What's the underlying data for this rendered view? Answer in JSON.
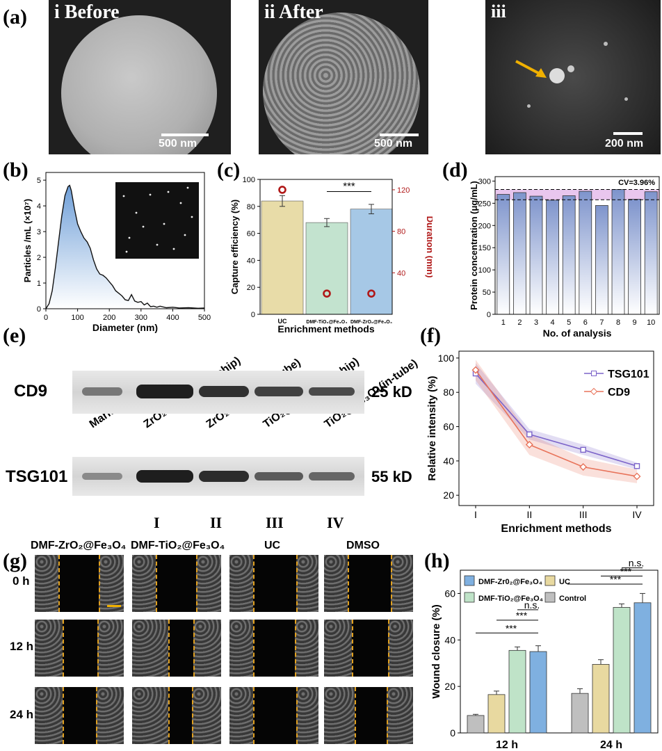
{
  "panels": {
    "a": {
      "label": "(a)",
      "img_i": "i Before",
      "img_ii": "ii After",
      "img_iii": "iii",
      "scale_i": "500 nm",
      "scale_ii": "500 nm",
      "scale_iii": "200 nm"
    },
    "b": {
      "label": "(b)"
    },
    "c": {
      "label": "(c)"
    },
    "d": {
      "label": "(d)"
    },
    "e": {
      "label": "(e)",
      "lanes": [
        "Marker",
        "ZrO₂@Fe₃O₄(on-chip)",
        "ZrO₂@Fe₃O₄(in-tube)",
        "TiO₂@Fe₃O₄(on-chip)",
        "TiO₂@Fe₃O₄(in-tube)"
      ],
      "row1": "CD9",
      "row2": "TSG101",
      "kd1": "25 kD",
      "kd2": "55 kD",
      "roman": [
        "I",
        "II",
        "III",
        "IV"
      ]
    },
    "f": {
      "label": "(f)"
    },
    "g": {
      "label": "(g)",
      "cols": [
        "DMF-ZrO₂@Fe₃O₄",
        "DMF-TiO₂@Fe₃O₄",
        "UC",
        "DMSO"
      ],
      "rows": [
        "0 h",
        "12 h",
        "24 h"
      ]
    },
    "h": {
      "label": "(h)"
    }
  },
  "chart_data": [
    {
      "id": "b",
      "type": "area",
      "xlabel": "Diameter (nm)",
      "ylabel": "Particles /mL (×10⁷)",
      "xlim": [
        0,
        500
      ],
      "ylim": [
        0,
        5.3
      ],
      "xticks": [
        0,
        100,
        200,
        300,
        400,
        500
      ],
      "yticks": [
        0,
        1,
        2,
        3,
        4,
        5
      ],
      "x": [
        0,
        10,
        20,
        30,
        40,
        50,
        60,
        70,
        75,
        80,
        90,
        100,
        110,
        120,
        130,
        140,
        150,
        160,
        170,
        180,
        190,
        200,
        210,
        220,
        230,
        240,
        250,
        260,
        270,
        280,
        290,
        300,
        310,
        320,
        330,
        340,
        350,
        360,
        380,
        400,
        420,
        450,
        480,
        500
      ],
      "y": [
        0,
        0.2,
        0.7,
        1.6,
        2.6,
        3.6,
        4.4,
        4.75,
        4.8,
        4.6,
        3.9,
        3.3,
        3.0,
        2.75,
        2.6,
        2.35,
        1.9,
        1.55,
        1.35,
        1.3,
        1.2,
        1.05,
        0.9,
        0.7,
        0.6,
        0.5,
        0.35,
        0.32,
        0.55,
        0.3,
        0.25,
        0.28,
        0.15,
        0.22,
        0.08,
        0.1,
        0.06,
        0.1,
        0.04,
        0.06,
        0.03,
        0.04,
        0.02,
        0.03
      ]
    },
    {
      "id": "c",
      "type": "bar",
      "xlabel": "Enrichment methods",
      "ylabel": "Capture efficiency (%)",
      "ylabel_right": "Duration (min)",
      "categories": [
        "UC",
        "DMF-TiO₂@Fe₃O₄",
        "DMF-ZrO₂@Fe₃O₄"
      ],
      "values": [
        84,
        68,
        78
      ],
      "errors": [
        4,
        3,
        3.5
      ],
      "duration": [
        120,
        20,
        20
      ],
      "ylim": [
        0,
        100
      ],
      "yticks": [
        0,
        20,
        40,
        60,
        80,
        100
      ],
      "ylim_right": [
        0,
        130
      ],
      "yticks_right": [
        40,
        80,
        120
      ],
      "significance": "***",
      "colors": [
        "#e8dca8",
        "#c3e3cf",
        "#a6c8e6"
      ]
    },
    {
      "id": "d",
      "type": "bar",
      "xlabel": "No. of analysis",
      "ylabel": "Protein concentration (μg/mL)",
      "categories": [
        "1",
        "2",
        "3",
        "4",
        "5",
        "6",
        "7",
        "8",
        "9",
        "10"
      ],
      "values": [
        270,
        274,
        266,
        257,
        267,
        277,
        245,
        281,
        259,
        276
      ],
      "ylim": [
        0,
        310
      ],
      "yticks": [
        0,
        50,
        100,
        150,
        200,
        250,
        300
      ],
      "annotation": "CV=3.96%",
      "band": [
        258,
        281
      ]
    },
    {
      "id": "f",
      "type": "line",
      "xlabel": "Enrichment methods",
      "ylabel": "Relative intensity (%)",
      "categories": [
        "I",
        "II",
        "III",
        "IV"
      ],
      "ylim": [
        14,
        104
      ],
      "yticks": [
        20,
        40,
        60,
        80,
        100
      ],
      "series": [
        {
          "name": "TSG101",
          "values": [
            91,
            55.5,
            46.5,
            37
          ],
          "color": "#7b63c9"
        },
        {
          "name": "CD9",
          "values": [
            93,
            49.5,
            36.5,
            31
          ],
          "color": "#e8735a"
        }
      ]
    },
    {
      "id": "h",
      "type": "bar",
      "ylabel": "Wound closure (%)",
      "categories": [
        "12 h",
        "24 h"
      ],
      "ylim": [
        0,
        70
      ],
      "yticks": [
        0,
        20,
        40,
        60
      ],
      "series": [
        {
          "name": "Control",
          "values": [
            7.5,
            17
          ],
          "errors": [
            0.5,
            2
          ],
          "color": "#bfbfbf"
        },
        {
          "name": "UC",
          "values": [
            16.5,
            29.5
          ],
          "errors": [
            1.5,
            2
          ],
          "color": "#e8d9a0"
        },
        {
          "name": "DMF-TiO₂@Fe₃O₄",
          "values": [
            35.5,
            54
          ],
          "errors": [
            1.5,
            1.5
          ],
          "color": "#bfe3c8"
        },
        {
          "name": "DMF-Zr0₂@Fe₃O₄",
          "values": [
            35,
            56
          ],
          "errors": [
            2.5,
            4
          ],
          "color": "#7fb0e0"
        }
      ],
      "sig": [
        [
          "***",
          "***",
          "n.s."
        ],
        [
          "***",
          "***",
          "n.s."
        ]
      ]
    }
  ]
}
